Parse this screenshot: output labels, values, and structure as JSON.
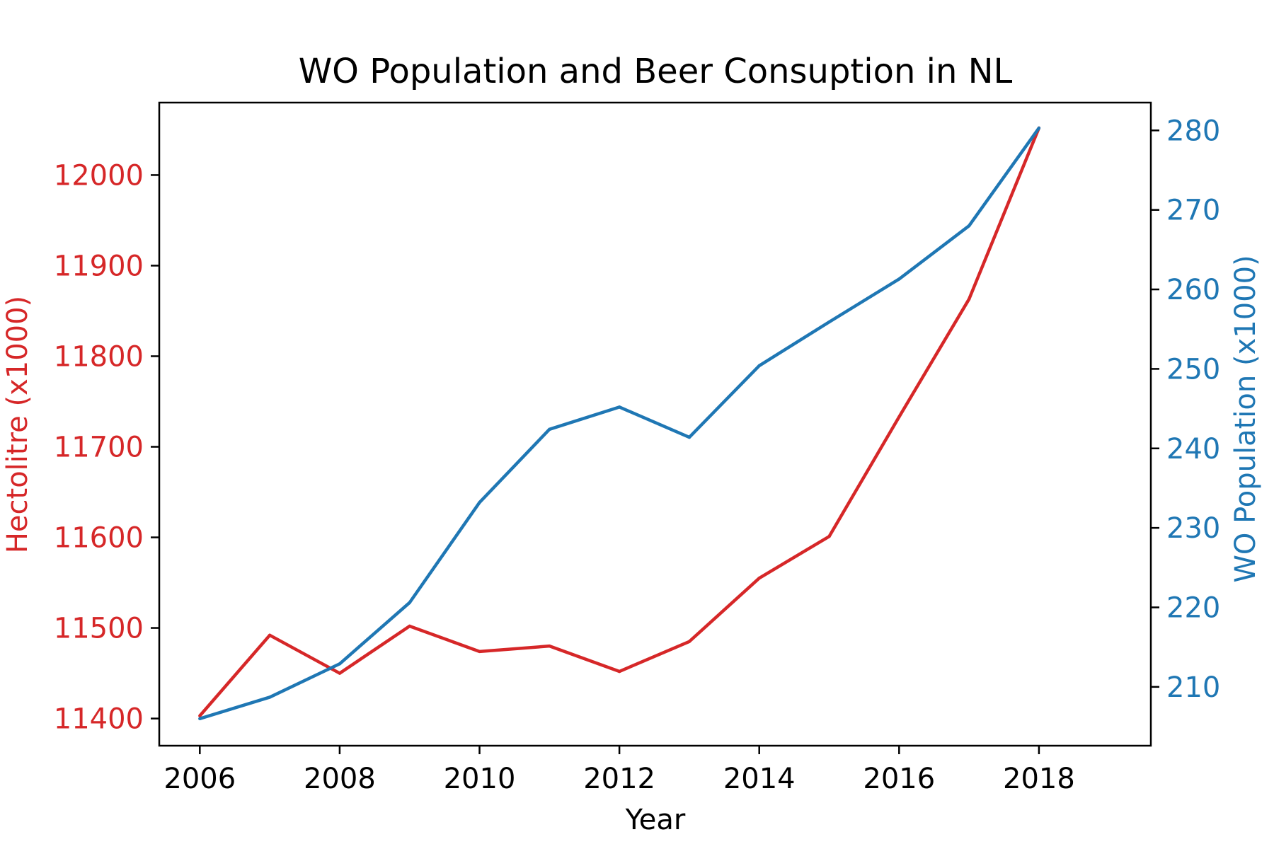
{
  "chart_data": {
    "type": "line",
    "title": "WO Population and Beer Consuption in NL",
    "xlabel": "Year",
    "ylabel_left": "Hectolitre (x1000)",
    "ylabel_right": "WO Population (x1000)",
    "x": [
      2006,
      2007,
      2008,
      2009,
      2010,
      2011,
      2012,
      2013,
      2014,
      2015,
      2016,
      2017,
      2018
    ],
    "xlim": [
      2005.42,
      2019.6
    ],
    "xticks": [
      2006,
      2008,
      2010,
      2012,
      2014,
      2016,
      2018
    ],
    "xtick_labels": [
      "2006",
      "2008",
      "2010",
      "2012",
      "2014",
      "2016",
      "2018"
    ],
    "left_axis": {
      "ylim": [
        11370,
        12080
      ],
      "ticks": [
        11400,
        11500,
        11600,
        11700,
        11800,
        11900,
        12000
      ],
      "tick_labels": [
        "11400",
        "11500",
        "11600",
        "11700",
        "11800",
        "11900",
        "12000"
      ]
    },
    "right_axis": {
      "ylim": [
        202.6,
        283.5
      ],
      "ticks": [
        210,
        220,
        230,
        240,
        250,
        260,
        270,
        280
      ],
      "tick_labels": [
        "210",
        "220",
        "230",
        "240",
        "250",
        "260",
        "270",
        "280"
      ]
    },
    "series": [
      {
        "name": "Hectolitre (x1000)",
        "axis": "left",
        "color": "#d62728",
        "values": [
          11403,
          11492,
          11450,
          11502,
          11474,
          11480,
          11452,
          11485,
          11555,
          11601,
          11733,
          11863,
          12052
        ]
      },
      {
        "name": "WO Population (x1000)",
        "axis": "right",
        "color": "#1f77b4",
        "values": [
          206.0,
          208.7,
          212.9,
          220.6,
          233.2,
          242.4,
          245.2,
          241.4,
          250.4,
          255.9,
          261.3,
          268.0,
          280.3
        ]
      }
    ],
    "grid": false,
    "legend": "none"
  }
}
